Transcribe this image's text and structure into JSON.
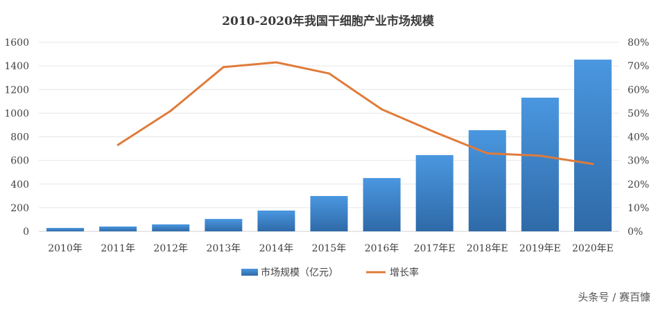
{
  "chart_data": {
    "type": "bar",
    "title": "2010-2020年我国干细胞产业市场规模",
    "categories": [
      "2010年",
      "2011年",
      "2012年",
      "2013年",
      "2014年",
      "2015年",
      "2016年",
      "2017年E",
      "2018年E",
      "2019年E",
      "2020年E"
    ],
    "series": [
      {
        "name": "市场规模（亿元）",
        "type": "bar",
        "axis": "left",
        "color": "#3d85c6",
        "values": [
          29,
          41,
          59,
          105,
          176,
          299,
          451,
          645,
          856,
          1131,
          1453
        ]
      },
      {
        "name": "增长率",
        "type": "line",
        "axis": "right",
        "color": "#e07b39",
        "values": [
          null,
          36.6,
          51,
          69.5,
          71.5,
          66.8,
          51.6,
          42,
          33,
          32,
          28.5
        ]
      }
    ],
    "y_left": {
      "range": [
        0,
        1600
      ],
      "ticks": [
        "0",
        "200",
        "400",
        "600",
        "800",
        "1000",
        "1200",
        "1400",
        "1600"
      ]
    },
    "y_right": {
      "range": [
        0,
        80
      ],
      "unit": "%",
      "ticks": [
        "0%",
        "10%",
        "20%",
        "30%",
        "40%",
        "50%",
        "60%",
        "70%",
        "80%"
      ]
    },
    "grid": true,
    "legend": "bottom"
  },
  "watermark": "头条号 / 赛百慷"
}
